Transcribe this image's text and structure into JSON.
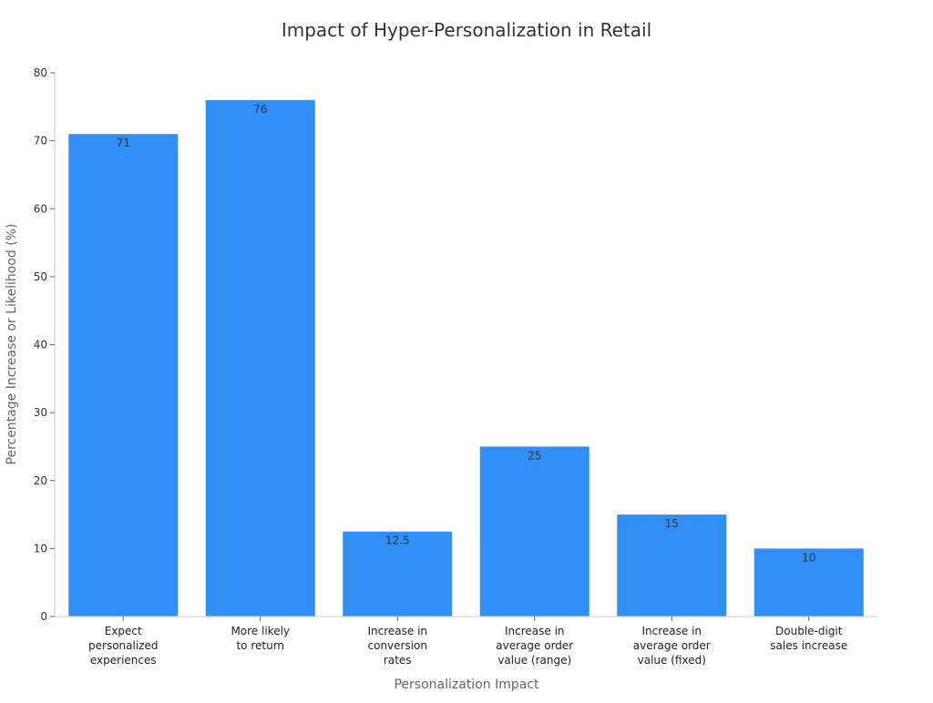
{
  "chart_data": {
    "type": "bar",
    "title": "Impact of Hyper-Personalization in Retail",
    "xlabel": "Personalization Impact",
    "ylabel": "Percentage Increase or Likelihood (%)",
    "ylim": [
      0,
      80
    ],
    "yticks": [
      0,
      10,
      20,
      30,
      40,
      50,
      60,
      70,
      80
    ],
    "grid": false,
    "categories": [
      [
        "Expect",
        "personalized",
        "experiences"
      ],
      [
        "More likely",
        "to return"
      ],
      [
        "Increase in",
        "conversion",
        "rates"
      ],
      [
        "Increase in",
        "average order",
        "value (range)"
      ],
      [
        "Increase in",
        "average order",
        "value (fixed)"
      ],
      [
        "Double-digit",
        "sales increase"
      ]
    ],
    "values": [
      71,
      76,
      12.5,
      25,
      15,
      10
    ],
    "data_labels": [
      "71",
      "76",
      "12.5",
      "25",
      "15",
      "10"
    ],
    "bar_color": "#2f8ff5"
  }
}
